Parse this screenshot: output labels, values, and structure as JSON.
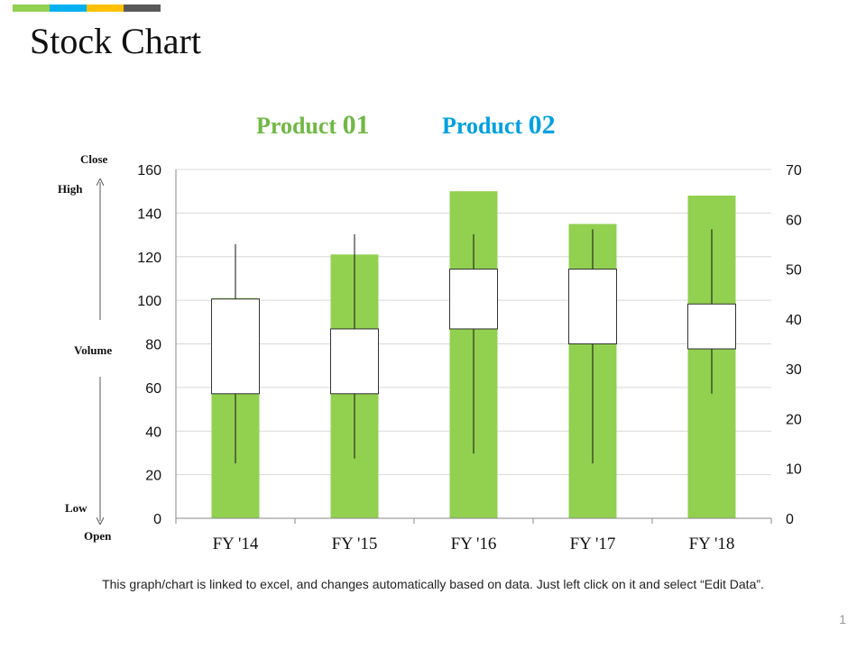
{
  "page": {
    "title": "Stock Chart",
    "footer": "This graph/chart is linked to excel, and changes automatically  based on data. Just left click on it and select “Edit Data”.",
    "page_number": "1",
    "accent_colors": [
      "#92d050",
      "#00b0f0",
      "#ffc000",
      "#595959"
    ]
  },
  "legend": {
    "product1": {
      "word": "Product",
      "num": "01",
      "color": "#70b844"
    },
    "product2": {
      "word": "Product",
      "num": "02",
      "color": "#00a0e0"
    }
  },
  "side_labels": {
    "close": "Close",
    "high": "High",
    "volume": "Volume",
    "low": "Low",
    "open": "Open"
  },
  "chart_data": {
    "type": "bar",
    "subtype": "volume-open-high-low-close",
    "categories": [
      "FY '14",
      "FY '15",
      "FY '16",
      "FY '17",
      "FY '18"
    ],
    "volume": [
      101,
      121,
      150,
      135,
      148
    ],
    "volume_axis": {
      "ylim": [
        0,
        160
      ],
      "ticks": [
        0,
        20,
        40,
        60,
        80,
        100,
        120,
        140,
        160
      ]
    },
    "price_axis": {
      "ylim": [
        0,
        70
      ],
      "ticks": [
        0,
        10,
        20,
        30,
        40,
        50,
        60,
        70
      ]
    },
    "open": [
      25,
      25,
      38,
      35,
      34
    ],
    "high": [
      55,
      57,
      57,
      58,
      58
    ],
    "low": [
      11,
      12,
      13,
      11,
      25
    ],
    "close": [
      44,
      38,
      50,
      50,
      43
    ],
    "colors": {
      "volume": "#92d050",
      "up": "#ffffff",
      "down": "#00b0f0"
    },
    "grid": true
  }
}
